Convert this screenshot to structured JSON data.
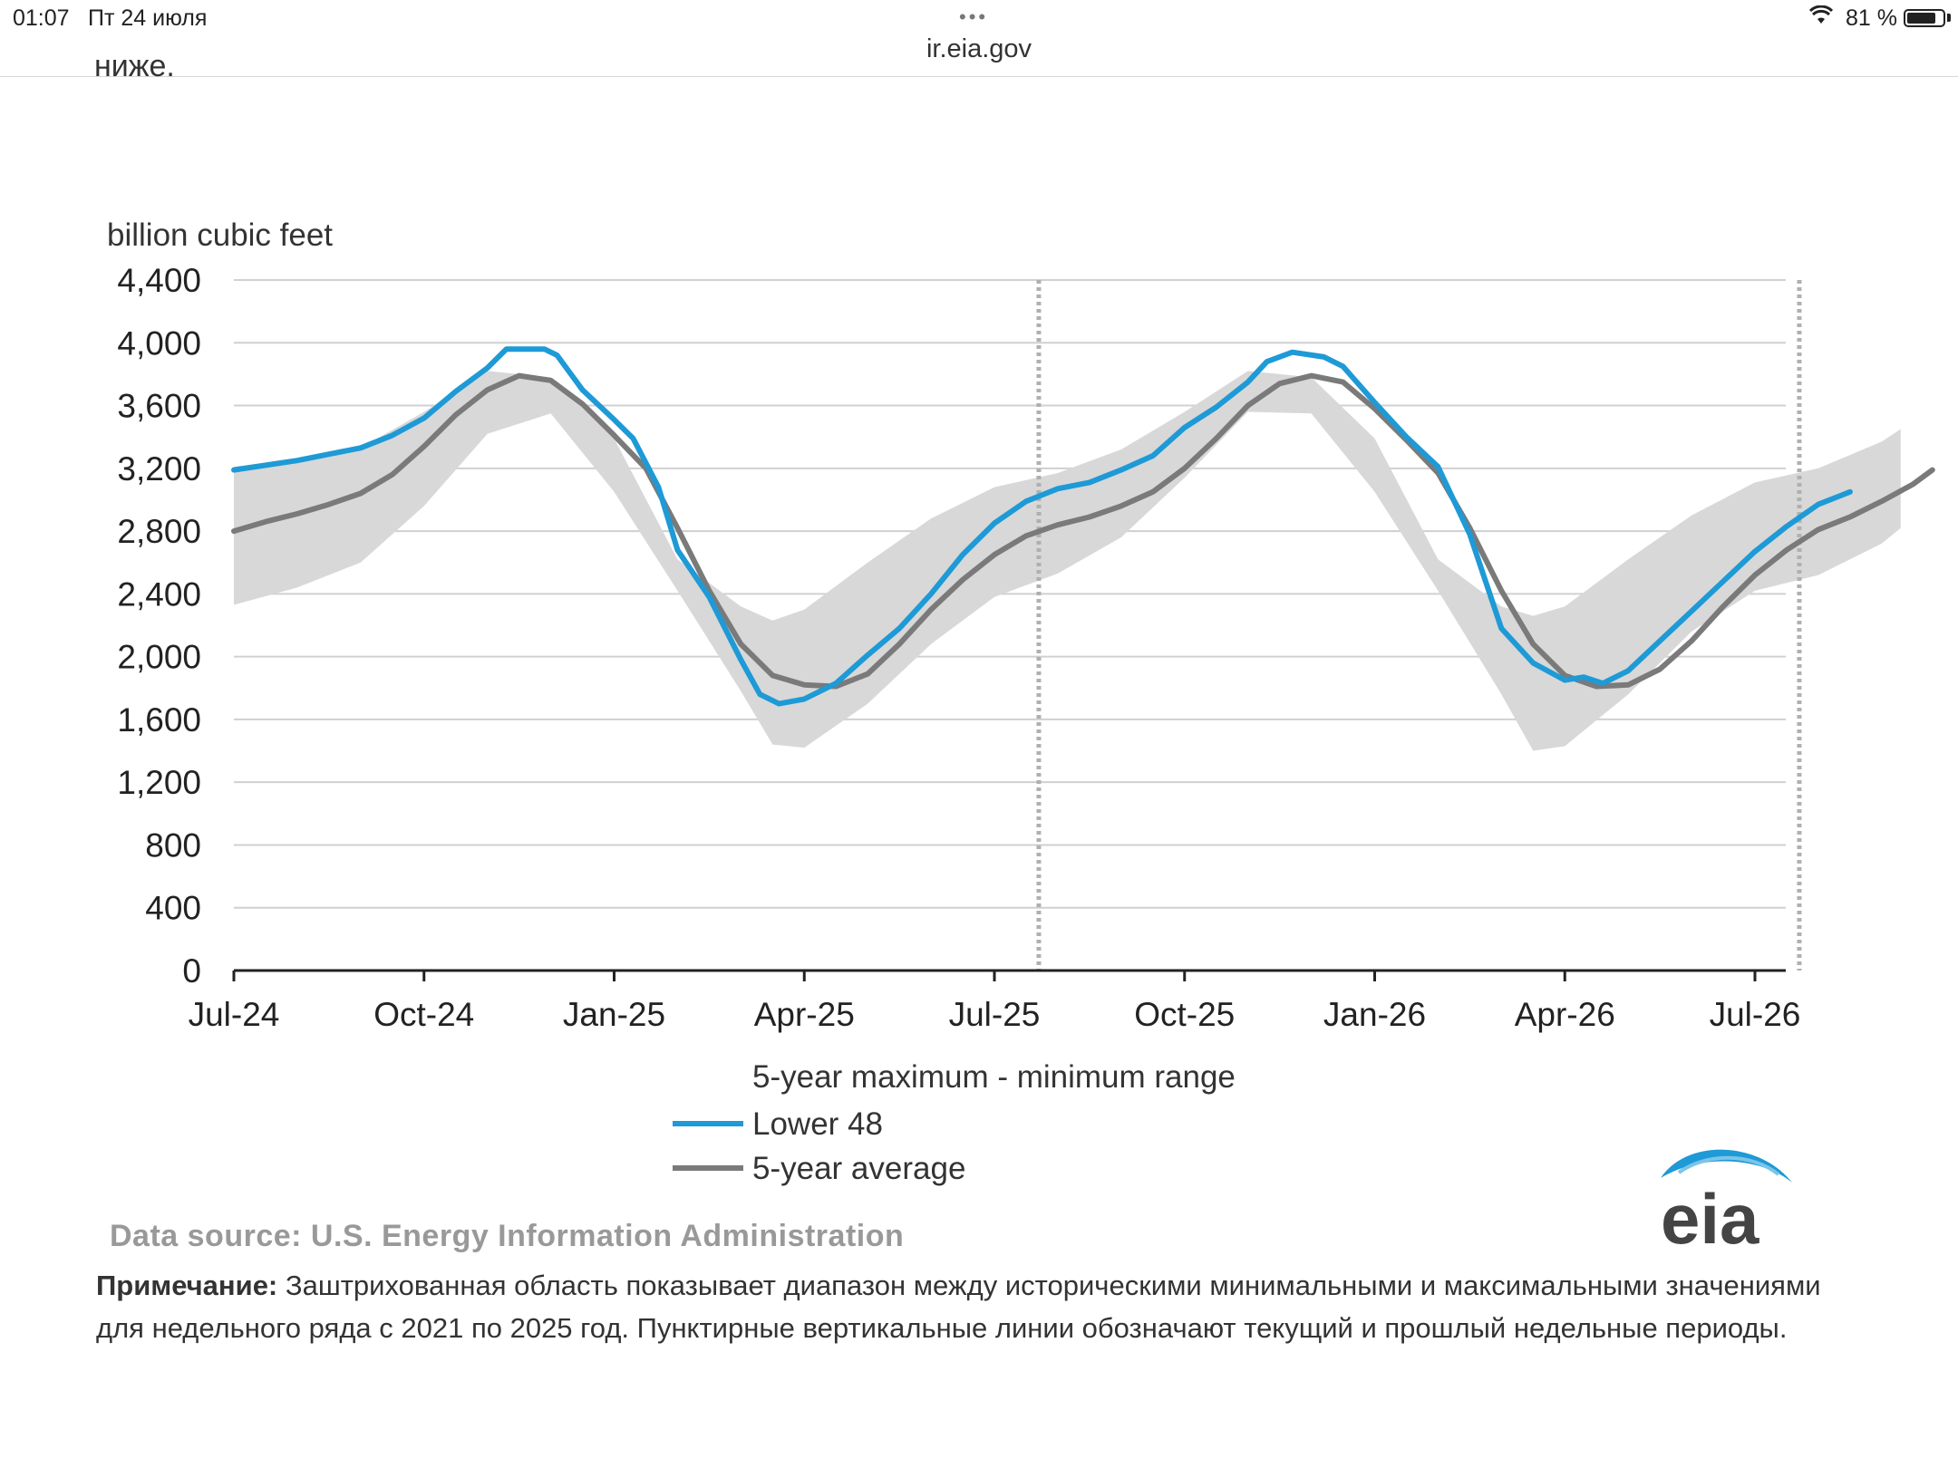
{
  "status_bar": {
    "time": "01:07",
    "date": "Пт 24 июля",
    "battery": "81 %",
    "battery_level": 0.81
  },
  "browser": {
    "url": "ir.eia.gov",
    "partial_text_above": "ниже."
  },
  "chart_data": {
    "type": "line",
    "ylabel": "billion cubic feet",
    "ylim": [
      0,
      4400
    ],
    "y_ticks": [
      "0",
      "400",
      "800",
      "1,200",
      "1,600",
      "2,000",
      "2,400",
      "2,800",
      "3,200",
      "3,600",
      "4,000",
      "4,400"
    ],
    "x_ticks": [
      "Jul-24",
      "Oct-24",
      "Jan-25",
      "Apr-25",
      "Jul-25",
      "Oct-25",
      "Jan-26",
      "Apr-26",
      "Jul-26"
    ],
    "x_range_months": [
      0,
      26.5
    ],
    "grid": "horizontal",
    "vertical_dotted_lines_months": [
      12.7,
      24.7
    ],
    "band": {
      "name": "5-year maximum - minimum range",
      "color": "#d8d8d8",
      "upper": [
        [
          0,
          3210
        ],
        [
          1,
          3260
        ],
        [
          2,
          3330
        ],
        [
          3,
          3560
        ],
        [
          4,
          3820
        ],
        [
          5,
          3780
        ],
        [
          6,
          3390
        ],
        [
          7,
          2620
        ],
        [
          8,
          2320
        ],
        [
          8.5,
          2230
        ],
        [
          9,
          2300
        ],
        [
          10,
          2600
        ],
        [
          11,
          2880
        ],
        [
          12,
          3080
        ],
        [
          13,
          3170
        ],
        [
          14,
          3320
        ],
        [
          15,
          3560
        ],
        [
          16,
          3820
        ],
        [
          17,
          3780
        ],
        [
          18,
          3390
        ],
        [
          19,
          2620
        ],
        [
          20,
          2320
        ],
        [
          20.5,
          2260
        ],
        [
          21,
          2320
        ],
        [
          22,
          2620
        ],
        [
          23,
          2900
        ],
        [
          24,
          3110
        ],
        [
          25,
          3200
        ],
        [
          26,
          3370
        ],
        [
          26.3,
          3450
        ]
      ],
      "lower": [
        [
          0,
          2330
        ],
        [
          1,
          2440
        ],
        [
          2,
          2600
        ],
        [
          3,
          2960
        ],
        [
          4,
          3420
        ],
        [
          5,
          3550
        ],
        [
          6,
          3050
        ],
        [
          7,
          2420
        ],
        [
          8,
          1780
        ],
        [
          8.5,
          1440
        ],
        [
          9,
          1420
        ],
        [
          10,
          1700
        ],
        [
          11,
          2080
        ],
        [
          12,
          2380
        ],
        [
          13,
          2530
        ],
        [
          14,
          2760
        ],
        [
          15,
          3140
        ],
        [
          16,
          3560
        ],
        [
          17,
          3550
        ],
        [
          18,
          3050
        ],
        [
          19,
          2420
        ],
        [
          20,
          1760
        ],
        [
          20.5,
          1400
        ],
        [
          21,
          1430
        ],
        [
          22,
          1760
        ],
        [
          23,
          2160
        ],
        [
          24,
          2420
        ],
        [
          25,
          2520
        ],
        [
          26,
          2720
        ],
        [
          26.3,
          2820
        ]
      ]
    },
    "series": [
      {
        "name": "Lower 48",
        "color": "#1e9ad6",
        "points": [
          [
            0,
            3190
          ],
          [
            1,
            3250
          ],
          [
            1.5,
            3290
          ],
          [
            2,
            3330
          ],
          [
            2.5,
            3410
          ],
          [
            3,
            3520
          ],
          [
            3.5,
            3690
          ],
          [
            4,
            3840
          ],
          [
            4.3,
            3960
          ],
          [
            4.9,
            3960
          ],
          [
            5.1,
            3920
          ],
          [
            5.5,
            3700
          ],
          [
            6,
            3510
          ],
          [
            6.3,
            3390
          ],
          [
            6.7,
            3080
          ],
          [
            7,
            2680
          ],
          [
            7.5,
            2380
          ],
          [
            8,
            1980
          ],
          [
            8.3,
            1760
          ],
          [
            8.6,
            1700
          ],
          [
            9,
            1730
          ],
          [
            9.5,
            1830
          ],
          [
            10,
            2010
          ],
          [
            10.5,
            2180
          ],
          [
            11,
            2400
          ],
          [
            11.5,
            2650
          ],
          [
            12,
            2850
          ],
          [
            12.5,
            2990
          ],
          [
            13,
            3070
          ],
          [
            13.5,
            3110
          ],
          [
            14,
            3190
          ],
          [
            14.5,
            3280
          ],
          [
            15,
            3460
          ],
          [
            15.5,
            3590
          ],
          [
            16,
            3750
          ],
          [
            16.3,
            3880
          ],
          [
            16.7,
            3940
          ],
          [
            17.2,
            3910
          ],
          [
            17.5,
            3850
          ],
          [
            18,
            3620
          ],
          [
            18.5,
            3400
          ],
          [
            19,
            3210
          ],
          [
            19.5,
            2780
          ],
          [
            20,
            2180
          ],
          [
            20.5,
            1960
          ],
          [
            21,
            1850
          ],
          [
            21.3,
            1870
          ],
          [
            21.6,
            1830
          ],
          [
            22,
            1910
          ],
          [
            22.5,
            2100
          ],
          [
            23,
            2290
          ],
          [
            23.5,
            2480
          ],
          [
            24,
            2670
          ],
          [
            24.5,
            2830
          ],
          [
            25,
            2970
          ],
          [
            25.5,
            3050
          ]
        ]
      },
      {
        "name": "5-year average",
        "color": "#7a7a7a",
        "points": [
          [
            0,
            2800
          ],
          [
            0.5,
            2860
          ],
          [
            1,
            2910
          ],
          [
            1.5,
            2970
          ],
          [
            2,
            3040
          ],
          [
            2.5,
            3160
          ],
          [
            3,
            3340
          ],
          [
            3.5,
            3540
          ],
          [
            4,
            3700
          ],
          [
            4.5,
            3790
          ],
          [
            5,
            3760
          ],
          [
            5.5,
            3610
          ],
          [
            6,
            3410
          ],
          [
            6.5,
            3200
          ],
          [
            7,
            2820
          ],
          [
            7.5,
            2420
          ],
          [
            8,
            2080
          ],
          [
            8.5,
            1880
          ],
          [
            9,
            1820
          ],
          [
            9.5,
            1810
          ],
          [
            10,
            1890
          ],
          [
            10.5,
            2080
          ],
          [
            11,
            2300
          ],
          [
            11.5,
            2490
          ],
          [
            12,
            2650
          ],
          [
            12.5,
            2770
          ],
          [
            13,
            2840
          ],
          [
            13.5,
            2890
          ],
          [
            14,
            2960
          ],
          [
            14.5,
            3050
          ],
          [
            15,
            3200
          ],
          [
            15.5,
            3390
          ],
          [
            16,
            3600
          ],
          [
            16.5,
            3740
          ],
          [
            17,
            3790
          ],
          [
            17.5,
            3750
          ],
          [
            18,
            3580
          ],
          [
            18.5,
            3380
          ],
          [
            19,
            3170
          ],
          [
            19.5,
            2820
          ],
          [
            20,
            2420
          ],
          [
            20.5,
            2080
          ],
          [
            21,
            1880
          ],
          [
            21.5,
            1810
          ],
          [
            22,
            1820
          ],
          [
            22.5,
            1920
          ],
          [
            23,
            2100
          ],
          [
            23.5,
            2320
          ],
          [
            24,
            2520
          ],
          [
            24.5,
            2680
          ],
          [
            25,
            2810
          ],
          [
            25.5,
            2890
          ],
          [
            26,
            2990
          ],
          [
            26.5,
            3100
          ],
          [
            26.8,
            3190
          ]
        ]
      }
    ]
  },
  "legend": {
    "band_label": "5-year maximum - minimum range",
    "line1_label": "Lower 48",
    "line2_label": "5-year average"
  },
  "source_text": "Data source:  U.S. Energy Information Administration",
  "logo_text": "eia",
  "note": {
    "label": "Примечание:",
    "text": " Заштрихованная область показывает диапазон между историческими минимальными и максимальными значениями для недельного ряда с 2021 по 2025 год. Пунктирные вертикальные линии обозначают текущий и прошлый недельные периоды."
  }
}
